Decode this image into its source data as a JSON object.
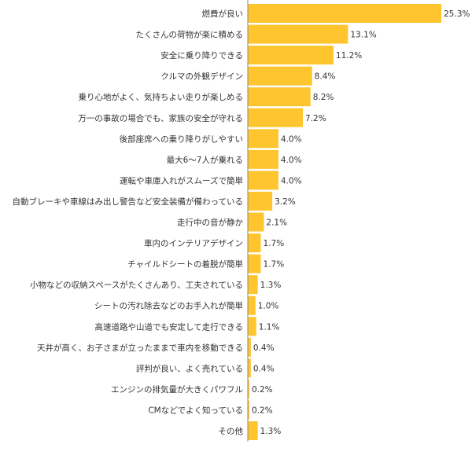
{
  "chart_data": {
    "type": "bar",
    "orientation": "horizontal",
    "value_suffix": "%",
    "bar_color": "#FFC52F",
    "axis_color": "#888888",
    "grid": false,
    "legend": "none",
    "xlim": [
      0,
      25.3
    ],
    "categories": [
      "燃費が良い",
      "たくさんの荷物が楽に積める",
      "安全に乗り降りできる",
      "クルマの外観デザイン",
      "乗り心地がよく、気持ちよい走りが楽しめる",
      "万一の事故の場合でも、家族の安全が守れる",
      "後部座席への乗り降りがしやすい",
      "最大6～7人が乗れる",
      "運転や車庫入れがスムーズで簡単",
      "自動ブレーキや車線はみ出し警告など安全装備が備わっている",
      "走行中の音が静か",
      "車内のインテリアデザイン",
      "チャイルドシートの着脱が簡単",
      "小物などの収納スペースがたくさんあり、工夫されている",
      "シートの汚れ除去などのお手入れが簡単",
      "高速道路や山道でも安定して走行できる",
      "天井が高く、お子さまが立ったままで車内を移動できる",
      "評判が良い、よく売れている",
      "エンジンの排気量が大きくパワフル",
      "CMなどでよく知っている",
      "その他"
    ],
    "values": [
      25.3,
      13.1,
      11.2,
      8.4,
      8.2,
      7.2,
      4.0,
      4.0,
      4.0,
      3.2,
      2.1,
      1.7,
      1.7,
      1.3,
      1.0,
      1.1,
      0.4,
      0.4,
      0.2,
      0.2,
      1.3
    ],
    "labels": [
      "25.3%",
      "13.1%",
      "11.2%",
      "8.4%",
      "8.2%",
      "7.2%",
      "4.0%",
      "4.0%",
      "4.0%",
      "3.2%",
      "2.1%",
      "1.7%",
      "1.7%",
      "1.3%",
      "1.0%",
      "1.1%",
      "0.4%",
      "0.4%",
      "0.2%",
      "0.2%",
      "1.3%"
    ]
  }
}
